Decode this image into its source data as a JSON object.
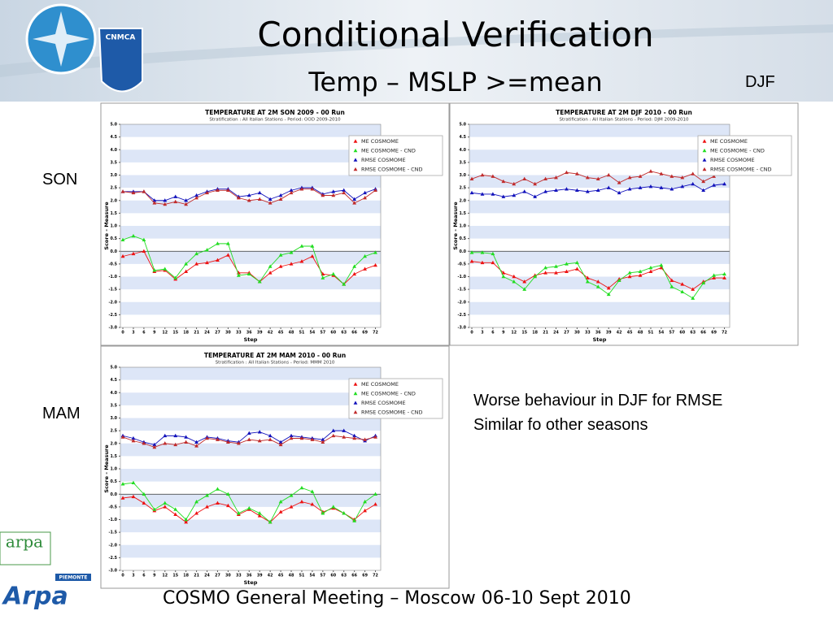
{
  "slide": {
    "title": "Conditional Verification",
    "subtitle": "Temp – MSLP >=mean",
    "labels": {
      "djf": "DJF",
      "son": "SON",
      "mam": "MAM"
    },
    "notes": [
      "Worse behaviour  in DJF for RMSE",
      "Similar fo other seasons"
    ],
    "footer": "COSMO General Meeting – Moscow 06-10 Sept 2010",
    "logos": {
      "top": "CNMCA",
      "arpa1": "arpa",
      "arpa2": "Arpa",
      "region": "PIEMONTE"
    }
  },
  "chart_data": [
    {
      "type": "line",
      "title": "TEMPERATURE AT 2M SON 2009 - 00 Run",
      "subtitle": "Stratification : All Italian Stations - Period: OOD 2009-2010",
      "xlabel": "Step",
      "ylabel": "Score - Measure",
      "x": [
        0,
        3,
        6,
        9,
        12,
        15,
        18,
        21,
        24,
        27,
        30,
        33,
        36,
        39,
        42,
        45,
        48,
        51,
        54,
        57,
        60,
        63,
        66,
        69,
        72
      ],
      "xlim": [
        -0.7,
        73.5
      ],
      "xticks": [
        0,
        3,
        6,
        9,
        12,
        15,
        18,
        21,
        24,
        27,
        30,
        33,
        36,
        39,
        42,
        45,
        48,
        51,
        54,
        57,
        60,
        63,
        66,
        69,
        72
      ],
      "ylim": [
        -3,
        5
      ],
      "yticks": [
        {
          "value": -3,
          "label": "-3.0"
        },
        {
          "value": -2.5,
          "label": "-2.5"
        },
        {
          "value": -2,
          "label": "-2.0"
        },
        {
          "value": -1.5,
          "label": "-1.5"
        },
        {
          "value": -1,
          "label": "-1.0"
        },
        {
          "value": -0.5,
          "label": "-0.5"
        },
        {
          "value": 0,
          "label": "0.0"
        },
        {
          "value": 0.5,
          "label": "0.5"
        },
        {
          "value": 1,
          "label": "1.0"
        },
        {
          "value": 1.5,
          "label": "1.5"
        },
        {
          "value": 2,
          "label": "2.0"
        },
        {
          "value": 2.5,
          "label": "2.5"
        },
        {
          "value": 3,
          "label": "3.0"
        },
        {
          "value": 3.5,
          "label": "3.5"
        },
        {
          "value": 4,
          "label": "4.0"
        },
        {
          "value": 4.5,
          "label": "4.5"
        },
        {
          "value": 5,
          "label": "5.0"
        }
      ],
      "grid": true,
      "legend": "upper right",
      "series": [
        {
          "name": "ME COSMOME",
          "color": "#ee1111",
          "values": [
            -0.2,
            -0.1,
            0.0,
            -0.8,
            -0.75,
            -1.1,
            -0.8,
            -0.5,
            -0.45,
            -0.35,
            -0.15,
            -0.85,
            -0.85,
            -1.2,
            -0.85,
            -0.6,
            -0.5,
            -0.4,
            -0.2,
            -0.9,
            -0.95,
            -1.3,
            -0.9,
            -0.7,
            -0.55
          ]
        },
        {
          "name": "ME COSMOME - CND",
          "color": "#22dd22",
          "values": [
            0.45,
            0.6,
            0.45,
            -0.75,
            -0.7,
            -1.05,
            -0.5,
            -0.1,
            0.05,
            0.3,
            0.3,
            -0.95,
            -0.9,
            -1.2,
            -0.6,
            -0.15,
            -0.05,
            0.2,
            0.2,
            -1.05,
            -0.9,
            -1.3,
            -0.6,
            -0.2,
            -0.05
          ]
        },
        {
          "name": "RMSE COSMOME",
          "color": "#1111bb",
          "values": [
            2.35,
            2.35,
            2.35,
            2.0,
            2.0,
            2.15,
            2.0,
            2.2,
            2.35,
            2.45,
            2.45,
            2.15,
            2.2,
            2.3,
            2.05,
            2.2,
            2.4,
            2.5,
            2.5,
            2.25,
            2.35,
            2.4,
            2.05,
            2.3,
            2.45
          ]
        },
        {
          "name": "RMSE COSMOME - CND",
          "color": "#c02a2a",
          "values": [
            2.35,
            2.3,
            2.35,
            1.9,
            1.85,
            1.95,
            1.85,
            2.1,
            2.3,
            2.4,
            2.4,
            2.1,
            2.0,
            2.05,
            1.9,
            2.05,
            2.3,
            2.45,
            2.45,
            2.2,
            2.2,
            2.3,
            1.9,
            2.1,
            2.4
          ]
        }
      ]
    },
    {
      "type": "line",
      "title": "TEMPERATURE AT 2M DJF 2010 - 00 Run",
      "subtitle": "Stratification : All Italian Stations - Period: DJM 2009-2010",
      "xlabel": "Step",
      "ylabel": "Score - Measure",
      "x": [
        0,
        3,
        6,
        9,
        12,
        15,
        18,
        21,
        24,
        27,
        30,
        33,
        36,
        39,
        42,
        45,
        48,
        51,
        54,
        57,
        60,
        63,
        66,
        69,
        72
      ],
      "xlim": [
        -0.7,
        73.5
      ],
      "xticks": [
        0,
        3,
        6,
        9,
        12,
        15,
        18,
        21,
        24,
        27,
        30,
        33,
        36,
        39,
        42,
        45,
        48,
        51,
        54,
        57,
        60,
        63,
        66,
        69,
        72
      ],
      "ylim": [
        -3,
        5
      ],
      "yticks": [
        {
          "value": -3,
          "label": "-3.0"
        },
        {
          "value": -2.5,
          "label": "-2.5"
        },
        {
          "value": -2,
          "label": "-2.0"
        },
        {
          "value": -1.5,
          "label": "-1.5"
        },
        {
          "value": -1,
          "label": "-1.0"
        },
        {
          "value": -0.5,
          "label": "-0.5"
        },
        {
          "value": 0,
          "label": "0.0"
        },
        {
          "value": 0.5,
          "label": "0.5"
        },
        {
          "value": 1,
          "label": "1.0"
        },
        {
          "value": 1.5,
          "label": "1.5"
        },
        {
          "value": 2,
          "label": "2.0"
        },
        {
          "value": 2.5,
          "label": "2.5"
        },
        {
          "value": 3,
          "label": "3.0"
        },
        {
          "value": 3.5,
          "label": "3.5"
        },
        {
          "value": 4,
          "label": "4.0"
        },
        {
          "value": 4.5,
          "label": "4.5"
        },
        {
          "value": 5,
          "label": "5.0"
        }
      ],
      "grid": true,
      "legend": "upper right",
      "series": [
        {
          "name": "ME COSMOME",
          "color": "#ee1111",
          "values": [
            -0.4,
            -0.45,
            -0.45,
            -0.85,
            -1.0,
            -1.2,
            -0.95,
            -0.85,
            -0.85,
            -0.8,
            -0.7,
            -1.05,
            -1.2,
            -1.45,
            -1.1,
            -1.0,
            -0.95,
            -0.8,
            -0.65,
            -1.15,
            -1.3,
            -1.5,
            -1.2,
            -1.05,
            -1.05
          ]
        },
        {
          "name": "ME COSMOME - CND",
          "color": "#22dd22",
          "values": [
            -0.05,
            -0.05,
            -0.1,
            -1.0,
            -1.2,
            -1.5,
            -1.0,
            -0.65,
            -0.6,
            -0.5,
            -0.45,
            -1.2,
            -1.4,
            -1.7,
            -1.15,
            -0.85,
            -0.8,
            -0.65,
            -0.55,
            -1.4,
            -1.6,
            -1.85,
            -1.25,
            -0.95,
            -0.9
          ]
        },
        {
          "name": "RMSE COSMOME",
          "color": "#1111bb",
          "values": [
            2.3,
            2.25,
            2.25,
            2.15,
            2.2,
            2.35,
            2.15,
            2.35,
            2.4,
            2.45,
            2.4,
            2.35,
            2.4,
            2.5,
            2.3,
            2.45,
            2.5,
            2.55,
            2.5,
            2.45,
            2.55,
            2.65,
            2.4,
            2.6,
            2.65
          ]
        },
        {
          "name": "RMSE COSMOME - CND",
          "color": "#c02a2a",
          "values": [
            2.85,
            3.0,
            2.95,
            2.75,
            2.65,
            2.85,
            2.65,
            2.85,
            2.9,
            3.1,
            3.05,
            2.9,
            2.85,
            3.0,
            2.7,
            2.9,
            2.95,
            3.15,
            3.05,
            2.95,
            2.9,
            3.05,
            2.75,
            2.95,
            null
          ]
        }
      ]
    },
    {
      "type": "line",
      "title": "TEMPERATURE AT 2M MAM 2010 - 00 Run",
      "subtitle": "Stratification : All Italian Stations - Period: MMM 2010",
      "xlabel": "Step",
      "ylabel": "Score - Measure",
      "x": [
        0,
        3,
        6,
        9,
        12,
        15,
        18,
        21,
        24,
        27,
        30,
        33,
        36,
        39,
        42,
        45,
        48,
        51,
        54,
        57,
        60,
        63,
        66,
        69,
        72
      ],
      "xlim": [
        -0.7,
        73.5
      ],
      "xticks": [
        0,
        3,
        6,
        9,
        12,
        15,
        18,
        21,
        24,
        27,
        30,
        33,
        36,
        39,
        42,
        45,
        48,
        51,
        54,
        57,
        60,
        63,
        66,
        69,
        72
      ],
      "ylim": [
        -3,
        5
      ],
      "yticks": [
        {
          "value": -3,
          "label": "-3.0"
        },
        {
          "value": -2.5,
          "label": "-2.5"
        },
        {
          "value": -2,
          "label": "-2.0"
        },
        {
          "value": -1.5,
          "label": "-1.5"
        },
        {
          "value": -1,
          "label": "-1.0"
        },
        {
          "value": -0.5,
          "label": "-0.5"
        },
        {
          "value": 0,
          "label": "0.0"
        },
        {
          "value": 0.5,
          "label": "0.5"
        },
        {
          "value": 1,
          "label": "1.0"
        },
        {
          "value": 1.5,
          "label": "1.5"
        },
        {
          "value": 2,
          "label": "2.0"
        },
        {
          "value": 2.5,
          "label": "2.5"
        },
        {
          "value": 3,
          "label": "3.0"
        },
        {
          "value": 3.5,
          "label": "3.5"
        },
        {
          "value": 4,
          "label": "4.0"
        },
        {
          "value": 4.5,
          "label": "4.5"
        },
        {
          "value": 5,
          "label": "5.0"
        }
      ],
      "grid": true,
      "legend": "upper right",
      "series": [
        {
          "name": "ME COSMOME",
          "color": "#ee1111",
          "values": [
            -0.15,
            -0.1,
            -0.35,
            -0.65,
            -0.5,
            -0.8,
            -1.1,
            -0.75,
            -0.5,
            -0.35,
            -0.45,
            -0.8,
            -0.6,
            -0.85,
            -1.1,
            -0.7,
            -0.5,
            -0.3,
            -0.4,
            -0.7,
            -0.55,
            -0.75,
            -1.0,
            -0.65,
            -0.4
          ]
        },
        {
          "name": "ME COSMOME - CND",
          "color": "#22dd22",
          "values": [
            0.4,
            0.45,
            0.0,
            -0.6,
            -0.35,
            -0.6,
            -1.0,
            -0.3,
            -0.05,
            0.2,
            0.0,
            -0.75,
            -0.55,
            -0.75,
            -1.1,
            -0.3,
            -0.05,
            0.25,
            0.1,
            -0.75,
            -0.5,
            -0.75,
            -1.05,
            -0.3,
            0.0
          ]
        },
        {
          "name": "RMSE COSMOME",
          "color": "#1111bb",
          "values": [
            2.3,
            2.2,
            2.05,
            1.95,
            2.3,
            2.3,
            2.25,
            2.05,
            2.25,
            2.2,
            2.1,
            2.05,
            2.4,
            2.45,
            2.3,
            2.05,
            2.3,
            2.25,
            2.2,
            2.15,
            2.5,
            2.5,
            2.3,
            2.1,
            2.3
          ]
        },
        {
          "name": "RMSE COSMOME - CND",
          "color": "#c02a2a",
          "values": [
            2.25,
            2.1,
            2.0,
            1.85,
            2.0,
            1.95,
            2.05,
            1.9,
            2.2,
            2.15,
            2.05,
            2.0,
            2.15,
            2.1,
            2.15,
            1.95,
            2.2,
            2.2,
            2.15,
            2.05,
            2.3,
            2.25,
            2.2,
            2.15,
            2.25
          ]
        }
      ]
    }
  ]
}
